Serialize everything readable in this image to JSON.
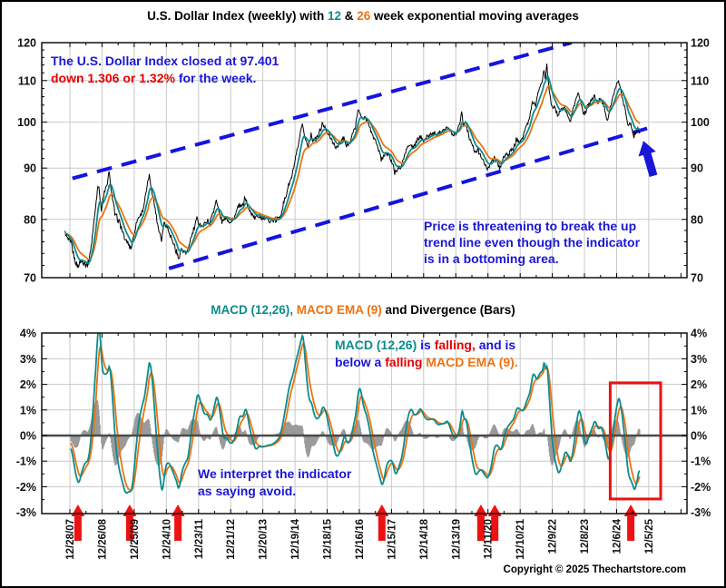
{
  "page_title": {
    "p1": "U.S. Dollar Index (weekly) with ",
    "p2": "12",
    "p3": " & ",
    "p4": "26",
    "p5": " week exponential moving averages"
  },
  "macd_title": {
    "p1": "MACD (12,26),",
    "p2": " MACD EMA (9)",
    "p3": " and Divergence (Bars)"
  },
  "annotations": {
    "close_l1": "The U.S. Dollar Index closed at 97.401",
    "close_l2_red": "down 1.306 or 1.32%",
    "close_l2_blue": " for the week.",
    "trend_l1": "Price is threatening to break the up",
    "trend_l2": "trend line even though the  indicator",
    "trend_l3": "is in a bottoming area.",
    "macd_l1a": "MACD (12,26)",
    "macd_l1b": " is ",
    "macd_l1c": "falling,",
    "macd_l1d": " and is",
    "macd_l2a": "below a",
    "macd_l2b": " falling ",
    "macd_l2c": "MACD EMA (9).",
    "avoid_l1": "We interpret the indicator",
    "avoid_l2": "as saying avoid."
  },
  "copyright": "Copyright © 2025 Thechartstore.com",
  "colors": {
    "ema12_teal": "#0d8c8c",
    "ema26_orange": "#ee7211",
    "annotation_blue": "#1a16d6",
    "trendline_blue": "#1414e0",
    "signal_red": "#ee1111",
    "histogram_gray": "#9a9a9a",
    "grid_gray": "#c9c9c9"
  },
  "x_axis": {
    "labels": [
      "12/28/07",
      "12/26/08",
      "12/25/09",
      "12/24/10",
      "12/23/11",
      "12/21/12",
      "12/20/13",
      "12/19/14",
      "12/18/15",
      "12/16/16",
      "12/15/17",
      "12/14/18",
      "12/13/19",
      "12/11/20",
      "12/10/21",
      "12/9/22",
      "12/8/23",
      "12/6/24",
      "12/5/25"
    ]
  },
  "top_chart": {
    "y_ticks": [
      120,
      110,
      100,
      90,
      80,
      70
    ],
    "scale": "log",
    "ylim": [
      70,
      120
    ],
    "last_close": 97.401,
    "weekly_change": "-1.306 (-1.32%)"
  },
  "macd_chart": {
    "y_tick_labels": [
      "4%",
      "3%",
      "2%",
      "1%",
      "0%",
      "-1%",
      "-2%",
      "-3%"
    ],
    "y_tick_values": [
      4,
      3,
      2,
      1,
      0,
      -1,
      -2,
      -3
    ],
    "ylim": [
      -3,
      4
    ]
  },
  "chart_data": {
    "type": "line",
    "title": "U.S. Dollar Index (weekly) with 12 & 26 week exponential moving averages",
    "subtitle": "MACD (12,26), MACD EMA (9) and Divergence (Bars)",
    "x_unit": "decimal_year",
    "x_range": [
      2007.85,
      2025.95
    ],
    "price_scale": "log",
    "price_ylim": [
      70,
      120
    ],
    "macd_ylim_pct": [
      -3,
      4
    ],
    "ema_periods": [
      12,
      26
    ],
    "macd_signal_period": 9,
    "price": [
      [
        2007.85,
        77.5
      ],
      [
        2007.95,
        76.5
      ],
      [
        2008.05,
        75.5
      ],
      [
        2008.15,
        73.0
      ],
      [
        2008.25,
        71.8
      ],
      [
        2008.35,
        72.8
      ],
      [
        2008.45,
        72.5
      ],
      [
        2008.55,
        71.9
      ],
      [
        2008.62,
        73.5
      ],
      [
        2008.7,
        77.0
      ],
      [
        2008.8,
        82.5
      ],
      [
        2008.87,
        86.5
      ],
      [
        2008.92,
        85.5
      ],
      [
        2008.98,
        81.5
      ],
      [
        2009.05,
        84.5
      ],
      [
        2009.15,
        86.5
      ],
      [
        2009.22,
        89.0
      ],
      [
        2009.3,
        85.0
      ],
      [
        2009.4,
        81.0
      ],
      [
        2009.5,
        80.0
      ],
      [
        2009.6,
        78.5
      ],
      [
        2009.7,
        76.5
      ],
      [
        2009.8,
        76.0
      ],
      [
        2009.9,
        74.8
      ],
      [
        2010.0,
        77.5
      ],
      [
        2010.1,
        80.0
      ],
      [
        2010.2,
        81.0
      ],
      [
        2010.3,
        82.5
      ],
      [
        2010.42,
        87.0
      ],
      [
        2010.47,
        88.3
      ],
      [
        2010.55,
        85.5
      ],
      [
        2010.65,
        82.0
      ],
      [
        2010.75,
        78.5
      ],
      [
        2010.85,
        76.5
      ],
      [
        2010.93,
        79.5
      ],
      [
        2011.0,
        79.0
      ],
      [
        2011.1,
        77.5
      ],
      [
        2011.2,
        76.0
      ],
      [
        2011.3,
        74.5
      ],
      [
        2011.37,
        73.0
      ],
      [
        2011.45,
        74.8
      ],
      [
        2011.55,
        74.2
      ],
      [
        2011.65,
        74.0
      ],
      [
        2011.75,
        76.5
      ],
      [
        2011.85,
        78.0
      ],
      [
        2011.95,
        80.2
      ],
      [
        2012.05,
        79.0
      ],
      [
        2012.15,
        78.8
      ],
      [
        2012.25,
        79.8
      ],
      [
        2012.35,
        79.2
      ],
      [
        2012.45,
        81.5
      ],
      [
        2012.55,
        83.5
      ],
      [
        2012.65,
        81.2
      ],
      [
        2012.75,
        79.4
      ],
      [
        2012.85,
        80.5
      ],
      [
        2012.95,
        79.6
      ],
      [
        2013.05,
        79.8
      ],
      [
        2013.15,
        80.8
      ],
      [
        2013.25,
        82.8
      ],
      [
        2013.35,
        82.2
      ],
      [
        2013.45,
        84.2
      ],
      [
        2013.55,
        81.8
      ],
      [
        2013.65,
        81.2
      ],
      [
        2013.75,
        80.2
      ],
      [
        2013.85,
        80.8
      ],
      [
        2013.95,
        80.3
      ],
      [
        2014.1,
        80.1
      ],
      [
        2014.25,
        79.8
      ],
      [
        2014.4,
        79.9
      ],
      [
        2014.5,
        80.2
      ],
      [
        2014.6,
        81.8
      ],
      [
        2014.7,
        84.0
      ],
      [
        2014.8,
        86.5
      ],
      [
        2014.9,
        88.2
      ],
      [
        2015.0,
        91.5
      ],
      [
        2015.1,
        94.5
      ],
      [
        2015.17,
        97.5
      ],
      [
        2015.23,
        99.8
      ],
      [
        2015.3,
        96.5
      ],
      [
        2015.4,
        94.8
      ],
      [
        2015.5,
        97.0
      ],
      [
        2015.57,
        95.8
      ],
      [
        2015.65,
        96.2
      ],
      [
        2015.75,
        97.5
      ],
      [
        2015.85,
        99.5
      ],
      [
        2015.95,
        98.5
      ],
      [
        2016.05,
        97.0
      ],
      [
        2016.15,
        96.0
      ],
      [
        2016.25,
        94.2
      ],
      [
        2016.35,
        94.8
      ],
      [
        2016.45,
        95.8
      ],
      [
        2016.52,
        96.5
      ],
      [
        2016.6,
        94.5
      ],
      [
        2016.7,
        95.5
      ],
      [
        2016.8,
        97.5
      ],
      [
        2016.88,
        99.0
      ],
      [
        2016.95,
        102.5
      ],
      [
        2017.0,
        102.8
      ],
      [
        2017.1,
        100.5
      ],
      [
        2017.2,
        101.0
      ],
      [
        2017.3,
        99.5
      ],
      [
        2017.4,
        97.0
      ],
      [
        2017.5,
        95.8
      ],
      [
        2017.6,
        93.8
      ],
      [
        2017.68,
        91.8
      ],
      [
        2017.75,
        92.5
      ],
      [
        2017.82,
        93.5
      ],
      [
        2017.9,
        92.8
      ],
      [
        2018.0,
        91.8
      ],
      [
        2018.1,
        89.0
      ],
      [
        2018.2,
        90.0
      ],
      [
        2018.3,
        90.2
      ],
      [
        2018.4,
        92.5
      ],
      [
        2018.5,
        94.5
      ],
      [
        2018.6,
        95.0
      ],
      [
        2018.68,
        94.2
      ],
      [
        2018.78,
        95.5
      ],
      [
        2018.88,
        96.8
      ],
      [
        2018.98,
        96.0
      ],
      [
        2019.1,
        96.5
      ],
      [
        2019.2,
        97.2
      ],
      [
        2019.3,
        97.5
      ],
      [
        2019.4,
        97.2
      ],
      [
        2019.5,
        97.8
      ],
      [
        2019.6,
        98.2
      ],
      [
        2019.72,
        99.0
      ],
      [
        2019.82,
        97.8
      ],
      [
        2019.92,
        97.2
      ],
      [
        2020.0,
        97.5
      ],
      [
        2020.1,
        99.0
      ],
      [
        2020.18,
        102.5
      ],
      [
        2020.24,
        99.0
      ],
      [
        2020.3,
        100.5
      ],
      [
        2020.4,
        97.0
      ],
      [
        2020.5,
        95.0
      ],
      [
        2020.6,
        93.2
      ],
      [
        2020.68,
        93.8
      ],
      [
        2020.78,
        92.8
      ],
      [
        2020.88,
        91.0
      ],
      [
        2020.98,
        89.9
      ],
      [
        2021.08,
        90.8
      ],
      [
        2021.18,
        92.3
      ],
      [
        2021.28,
        91.2
      ],
      [
        2021.38,
        90.1
      ],
      [
        2021.48,
        92.2
      ],
      [
        2021.58,
        92.8
      ],
      [
        2021.68,
        93.2
      ],
      [
        2021.78,
        94.0
      ],
      [
        2021.88,
        96.0
      ],
      [
        2021.98,
        95.8
      ],
      [
        2022.08,
        96.5
      ],
      [
        2022.18,
        98.8
      ],
      [
        2022.28,
        100.5
      ],
      [
        2022.38,
        104.8
      ],
      [
        2022.48,
        104.2
      ],
      [
        2022.58,
        107.5
      ],
      [
        2022.68,
        109.5
      ],
      [
        2022.74,
        113.0
      ],
      [
        2022.78,
        110.5
      ],
      [
        2022.83,
        114.0
      ],
      [
        2022.9,
        107.5
      ],
      [
        2022.98,
        104.0
      ],
      [
        2023.08,
        103.2
      ],
      [
        2023.18,
        101.5
      ],
      [
        2023.28,
        102.8
      ],
      [
        2023.38,
        103.5
      ],
      [
        2023.45,
        102.0
      ],
      [
        2023.55,
        100.0
      ],
      [
        2023.65,
        103.0
      ],
      [
        2023.75,
        106.0
      ],
      [
        2023.82,
        106.8
      ],
      [
        2023.92,
        103.8
      ],
      [
        2024.0,
        101.5
      ],
      [
        2024.1,
        104.2
      ],
      [
        2024.2,
        104.8
      ],
      [
        2024.3,
        106.2
      ],
      [
        2024.4,
        104.5
      ],
      [
        2024.5,
        105.8
      ],
      [
        2024.6,
        103.8
      ],
      [
        2024.72,
        100.5
      ],
      [
        2024.82,
        104.0
      ],
      [
        2024.92,
        107.0
      ],
      [
        2025.0,
        109.0
      ],
      [
        2025.06,
        109.8
      ],
      [
        2025.14,
        107.0
      ],
      [
        2025.24,
        103.8
      ],
      [
        2025.34,
        99.8
      ],
      [
        2025.44,
        99.4
      ],
      [
        2025.54,
        96.8
      ],
      [
        2025.62,
        98.2
      ],
      [
        2025.68,
        98.7
      ],
      [
        2025.72,
        97.4
      ]
    ],
    "trendlines": [
      {
        "name": "upper-channel",
        "t1": 2008.08,
        "p1": 87.9,
        "t2": 2023.6,
        "p2": 120.0
      },
      {
        "name": "lower-channel",
        "t1": 2011.08,
        "p1": 71.5,
        "t2": 2026.1,
        "p2": 98.9
      }
    ],
    "signal_arrows_t": [
      2008.25,
      2009.86,
      2011.36,
      2017.7,
      2020.78,
      2021.21,
      2025.44
    ],
    "highlight_box": {
      "t1": 2024.8,
      "v1": 2.06,
      "t2": 2026.37,
      "v2": -2.48
    }
  }
}
